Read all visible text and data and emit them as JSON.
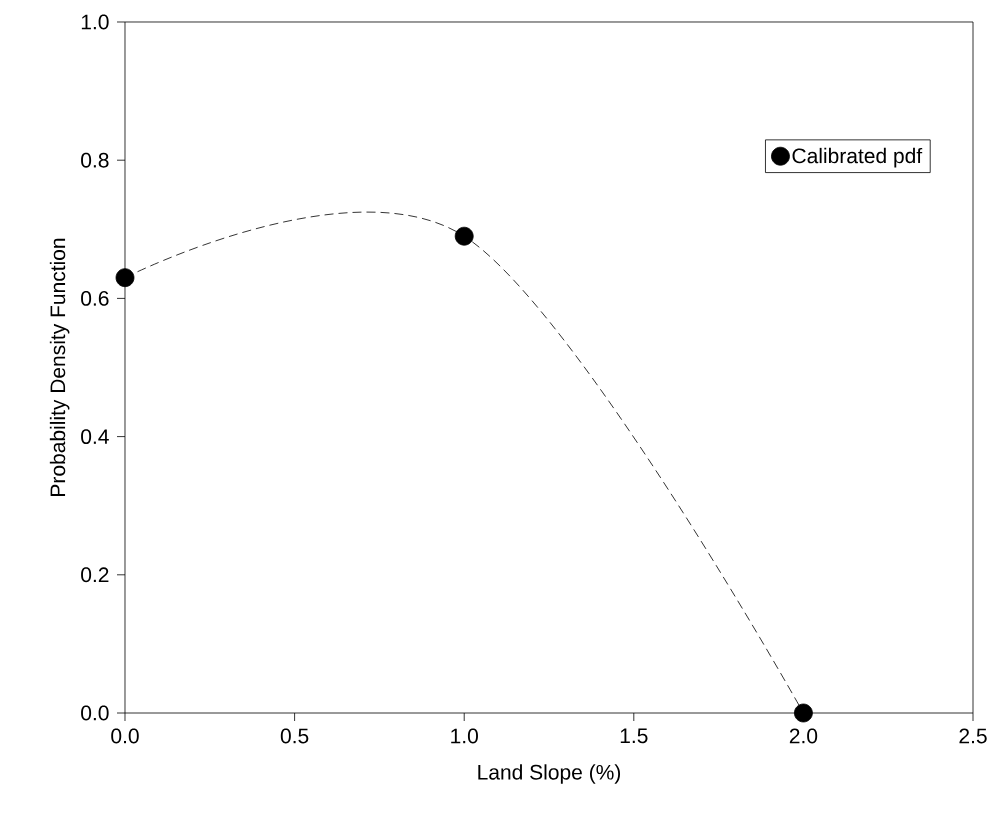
{
  "chart_data": {
    "type": "line",
    "xlabel": "Land Slope (%)",
    "ylabel": "Probability Density Function",
    "x": [
      0,
      1,
      2
    ],
    "series": [
      {
        "name": "Calibrated pdf",
        "color": "#000000",
        "values": [
          0.63,
          0.69,
          0.0
        ]
      }
    ],
    "xlim": [
      0,
      2.5
    ],
    "ylim": [
      0,
      1.0
    ],
    "xticks": [
      {
        "value": 0,
        "label": "0.0"
      },
      {
        "value": 0.5,
        "label": "0.5"
      },
      {
        "value": 1,
        "label": "1.0"
      },
      {
        "value": 1.5,
        "label": "1.5"
      },
      {
        "value": 2,
        "label": "2.0"
      },
      {
        "value": 2.5,
        "label": "2.5"
      }
    ],
    "yticks": [
      {
        "value": 0,
        "label": "0.0"
      },
      {
        "value": 0.2,
        "label": "0.2"
      },
      {
        "value": 0.4,
        "label": "0.4"
      },
      {
        "value": 0.6,
        "label": "0.6"
      },
      {
        "value": 0.8,
        "label": "0.8"
      },
      {
        "value": 1.0,
        "label": "1.0"
      }
    ],
    "grid": false,
    "legend": "top right",
    "marker": "circle",
    "line_style": "dashed"
  }
}
